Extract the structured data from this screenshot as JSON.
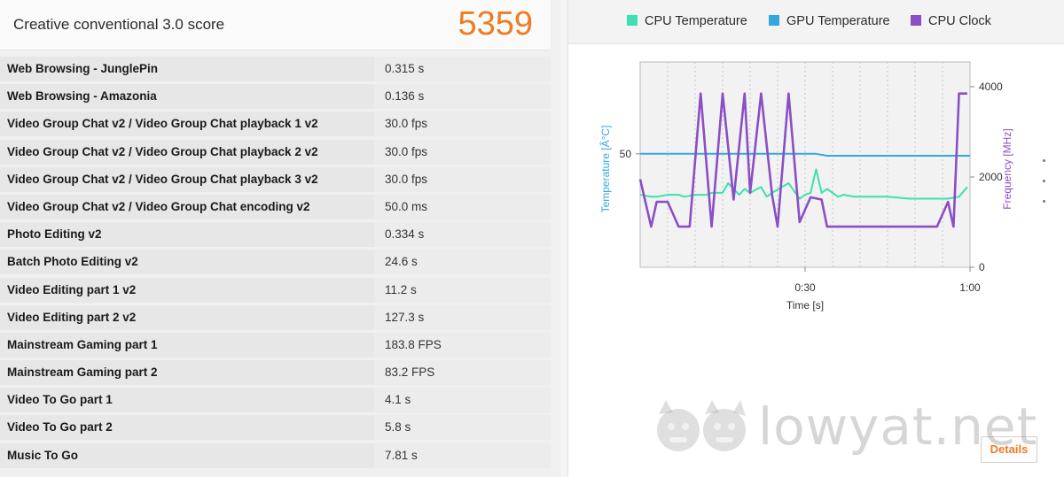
{
  "score": {
    "title": "Creative conventional 3.0 score",
    "value": "5359"
  },
  "results": [
    {
      "name": "Web Browsing - JunglePin",
      "value": "0.315 s"
    },
    {
      "name": "Web Browsing - Amazonia",
      "value": "0.136 s"
    },
    {
      "name": "Video Group Chat v2 / Video Group Chat playback 1 v2",
      "value": "30.0 fps"
    },
    {
      "name": "Video Group Chat v2 / Video Group Chat playback 2 v2",
      "value": "30.0 fps"
    },
    {
      "name": "Video Group Chat v2 / Video Group Chat playback 3 v2",
      "value": "30.0 fps"
    },
    {
      "name": "Video Group Chat v2 / Video Group Chat encoding v2",
      "value": "50.0 ms"
    },
    {
      "name": "Photo Editing v2",
      "value": "0.334 s"
    },
    {
      "name": "Batch Photo Editing v2",
      "value": "24.6 s"
    },
    {
      "name": "Video Editing part 1 v2",
      "value": "11.2 s"
    },
    {
      "name": "Video Editing part 2 v2",
      "value": "127.3 s"
    },
    {
      "name": "Mainstream Gaming part 1",
      "value": "183.8 FPS"
    },
    {
      "name": "Mainstream Gaming part 2",
      "value": "83.2 FPS"
    },
    {
      "name": "Video To Go part 1",
      "value": "4.1 s"
    },
    {
      "name": "Video To Go part 2",
      "value": "5.8 s"
    },
    {
      "name": "Music To Go",
      "value": "7.81 s"
    }
  ],
  "legend": [
    {
      "label": "CPU Temperature",
      "color": "#3de0b0"
    },
    {
      "label": "GPU Temperature",
      "color": "#33a8e0"
    },
    {
      "label": "CPU Clock",
      "color": "#8a4fc4"
    }
  ],
  "chart_data": {
    "type": "line",
    "xlabel": "Time [s]",
    "ylabel_left": "Temperature [Â°C]",
    "ylabel_right": "Frequency [MHz]",
    "x_ticks": [
      "0:30",
      "1:00"
    ],
    "x_tick_values": [
      30,
      60
    ],
    "xlim": [
      0,
      60
    ],
    "y_left_ticks": [
      "50"
    ],
    "y_left_tick_values": [
      50
    ],
    "ylim_left": [
      0,
      100
    ],
    "y_right_ticks": [
      "4000",
      "2000",
      "0"
    ],
    "y_right_tick_values": [
      4000,
      2000,
      0
    ],
    "ylim_right": [
      0,
      4000
    ],
    "grid": true,
    "series": [
      {
        "name": "CPU Temperature",
        "axis": "left",
        "color": "#3de0b0",
        "x": [
          0,
          2,
          3,
          5,
          7,
          8,
          10,
          12,
          13,
          15,
          16,
          18,
          19,
          20,
          22,
          23,
          24,
          27,
          29,
          30,
          31,
          32,
          33,
          34,
          36,
          37,
          39,
          41,
          42,
          45,
          49,
          53,
          56,
          58,
          59.5
        ],
        "y": [
          29,
          28,
          28,
          29,
          29,
          28,
          29,
          29,
          30,
          30,
          35,
          29,
          32,
          30,
          33,
          28,
          30,
          35,
          27,
          29,
          30,
          42,
          30,
          32,
          28,
          29,
          28,
          28,
          28,
          28,
          27,
          27,
          27,
          28,
          33
        ]
      },
      {
        "name": "GPU Temperature",
        "axis": "left",
        "color": "#33a8e0",
        "x": [
          0,
          31,
          32,
          34,
          40,
          50,
          60
        ],
        "y": [
          50,
          50,
          50,
          49,
          49,
          49,
          49
        ]
      },
      {
        "name": "CPU Clock",
        "axis": "right",
        "color": "#8a4fc4",
        "x": [
          0,
          2,
          3,
          5,
          7,
          9,
          11,
          13,
          15,
          17,
          19,
          20,
          22,
          24,
          25,
          27,
          29,
          31,
          33,
          34,
          36,
          37,
          38,
          39,
          41,
          45,
          50,
          54,
          56,
          57,
          58,
          59.5
        ],
        "y": [
          1950,
          900,
          1450,
          1450,
          900,
          900,
          3850,
          900,
          3850,
          1500,
          3850,
          1650,
          3850,
          1600,
          900,
          3850,
          1000,
          1550,
          1500,
          900,
          900,
          900,
          900,
          900,
          900,
          900,
          900,
          900,
          1450,
          900,
          3850,
          3850
        ]
      }
    ]
  },
  "details": {
    "label": "Details"
  },
  "watermark": {
    "text": "lowyat.net"
  }
}
